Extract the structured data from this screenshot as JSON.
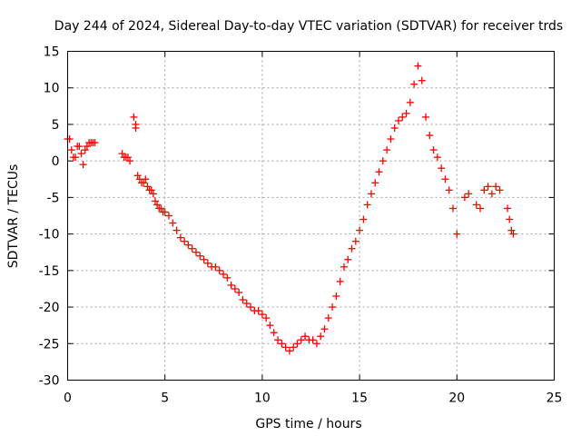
{
  "chart_data": {
    "type": "scatter",
    "title": "Day 244 of 2024, Sidereal Day-to-day VTEC variation (SDTVAR) for receiver trds",
    "xlabel": "GPS time / hours",
    "ylabel": "SDTVAR / TECUs",
    "xlim": [
      0,
      25
    ],
    "ylim": [
      -30,
      15
    ],
    "xticks": [
      0,
      5,
      10,
      15,
      20,
      25
    ],
    "yticks": [
      -30,
      -25,
      -20,
      -15,
      -10,
      -5,
      0,
      5,
      10,
      15
    ],
    "grid": true,
    "marker": "plus",
    "series": [
      {
        "name": "SDTVAR",
        "color": "#ff0000",
        "x": [
          0.0,
          0.1,
          0.2,
          0.3,
          0.4,
          0.5,
          0.6,
          0.7,
          0.8,
          0.9,
          1.0,
          1.1,
          1.2,
          1.3,
          1.4,
          2.8,
          2.9,
          3.0,
          3.1,
          3.2,
          3.4,
          3.5,
          3.5,
          3.6,
          3.7,
          3.8,
          3.9,
          4.0,
          4.1,
          4.2,
          4.3,
          4.4,
          4.5,
          4.6,
          4.7,
          4.8,
          4.9,
          5.0,
          5.2,
          5.4,
          5.6,
          5.8,
          6.0,
          6.2,
          6.4,
          6.6,
          6.8,
          7.0,
          7.2,
          7.4,
          7.6,
          7.8,
          8.0,
          8.2,
          8.4,
          8.6,
          8.8,
          9.0,
          9.2,
          9.4,
          9.6,
          9.8,
          10.0,
          10.2,
          10.4,
          10.6,
          10.8,
          11.0,
          11.2,
          11.4,
          11.6,
          11.8,
          12.0,
          12.2,
          12.4,
          12.6,
          12.8,
          13.0,
          13.2,
          13.4,
          13.6,
          13.8,
          14.0,
          14.2,
          14.4,
          14.6,
          14.8,
          15.0,
          15.2,
          15.4,
          15.6,
          15.8,
          16.0,
          16.2,
          16.4,
          16.6,
          16.8,
          17.0,
          17.2,
          17.4,
          17.6,
          17.8,
          18.0,
          18.2,
          18.4,
          18.6,
          18.8,
          19.0,
          19.2,
          19.4,
          19.6,
          19.8,
          20.0,
          20.4,
          20.6,
          21.0,
          21.2,
          21.4,
          21.6,
          21.8,
          22.0,
          22.2,
          22.6,
          22.7,
          22.8,
          22.9
        ],
        "y": [
          3.0,
          3.0,
          1.5,
          0.5,
          0.5,
          2.0,
          2.0,
          1.0,
          -0.5,
          1.5,
          2.0,
          2.5,
          2.5,
          2.5,
          2.5,
          1.0,
          0.5,
          0.5,
          0.5,
          0.0,
          6.0,
          5.0,
          4.5,
          -2.0,
          -2.5,
          -3.0,
          -3.0,
          -2.5,
          -3.5,
          -4.0,
          -4.0,
          -4.5,
          -5.5,
          -6.0,
          -6.5,
          -6.5,
          -7.0,
          -7.0,
          -7.5,
          -8.5,
          -9.5,
          -10.5,
          -11.0,
          -11.5,
          -12.0,
          -12.5,
          -13.0,
          -13.5,
          -14.0,
          -14.5,
          -14.5,
          -15.0,
          -15.5,
          -16.0,
          -17.0,
          -17.5,
          -18.0,
          -19.0,
          -19.5,
          -20.0,
          -20.5,
          -20.5,
          -21.0,
          -21.5,
          -22.5,
          -23.5,
          -24.5,
          -25.0,
          -25.5,
          -26.0,
          -25.5,
          -25.0,
          -24.5,
          -24.0,
          -24.5,
          -24.5,
          -25.0,
          -24.0,
          -23.0,
          -21.5,
          -20.0,
          -18.5,
          -16.5,
          -14.5,
          -13.5,
          -12.0,
          -11.0,
          -9.5,
          -8.0,
          -6.0,
          -4.5,
          -3.0,
          -1.5,
          0.0,
          1.5,
          3.0,
          4.5,
          5.5,
          6.0,
          6.5,
          8.0,
          10.5,
          13.0,
          11.0,
          6.0,
          3.5,
          1.5,
          0.5,
          -1.0,
          -2.5,
          -4.0,
          -6.5,
          -10.0,
          -5.0,
          -4.5,
          -6.0,
          -6.5,
          -4.0,
          -3.5,
          -4.5,
          -3.5,
          -4.0,
          -6.5,
          -8.0,
          -9.5,
          -10.0
        ]
      }
    ]
  }
}
